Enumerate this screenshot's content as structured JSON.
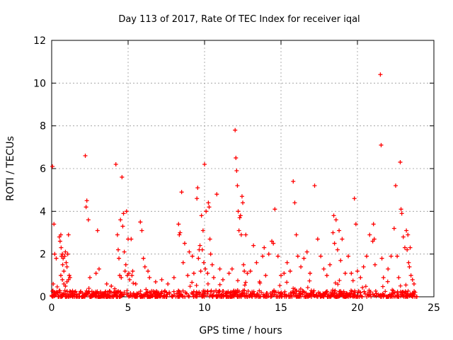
{
  "chart_data": {
    "type": "scatter",
    "title": "Day 113 of 2017, Rate Of TEC Index for receiver iqal",
    "xlabel": "GPS time / hours",
    "ylabel": "ROTI / TECUs",
    "xlim": [
      0,
      25
    ],
    "ylim": [
      0,
      12
    ],
    "x_ticks": [
      0,
      5,
      10,
      15,
      20,
      25
    ],
    "y_ticks": [
      0,
      2,
      4,
      6,
      8,
      10,
      12
    ],
    "grid": true,
    "marker": "plus",
    "color": "#ff0000",
    "baseline_band": {
      "x_start": 0,
      "x_end": 23.9,
      "y_max": 0.3
    },
    "points": [
      [
        0.05,
        6.1
      ],
      [
        0.1,
        0.6
      ],
      [
        0.15,
        3.4
      ],
      [
        0.2,
        2.0
      ],
      [
        0.3,
        1.8
      ],
      [
        0.5,
        2.8
      ],
      [
        0.55,
        2.6
      ],
      [
        0.6,
        2.9
      ],
      [
        0.62,
        2.3
      ],
      [
        0.65,
        1.9
      ],
      [
        0.7,
        2.0
      ],
      [
        0.72,
        1.5
      ],
      [
        0.75,
        1.8
      ],
      [
        0.8,
        1.2
      ],
      [
        0.85,
        1.9
      ],
      [
        0.9,
        2.1
      ],
      [
        0.95,
        1.6
      ],
      [
        1.0,
        1.4
      ],
      [
        1.05,
        2.0
      ],
      [
        1.1,
        2.9
      ],
      [
        1.15,
        1.0
      ],
      [
        1.2,
        0.9
      ],
      [
        0.6,
        1.0
      ],
      [
        0.7,
        0.8
      ],
      [
        0.8,
        0.6
      ],
      [
        0.9,
        0.5
      ],
      [
        1.0,
        0.7
      ],
      [
        1.1,
        0.8
      ],
      [
        2.2,
        6.6
      ],
      [
        2.3,
        4.5
      ],
      [
        2.25,
        4.2
      ],
      [
        2.4,
        3.6
      ],
      [
        2.5,
        0.9
      ],
      [
        2.9,
        1.1
      ],
      [
        3.0,
        3.1
      ],
      [
        3.1,
        1.3
      ],
      [
        3.6,
        0.6
      ],
      [
        3.9,
        0.5
      ],
      [
        4.2,
        6.2
      ],
      [
        4.3,
        2.9
      ],
      [
        4.35,
        2.2
      ],
      [
        4.4,
        1.8
      ],
      [
        4.45,
        1.0
      ],
      [
        4.5,
        3.6
      ],
      [
        4.55,
        0.9
      ],
      [
        4.6,
        5.6
      ],
      [
        4.65,
        3.3
      ],
      [
        4.7,
        3.9
      ],
      [
        4.75,
        2.1
      ],
      [
        4.8,
        1.2
      ],
      [
        4.85,
        1.5
      ],
      [
        4.9,
        4.0
      ],
      [
        4.95,
        1.0
      ],
      [
        5.0,
        2.7
      ],
      [
        5.05,
        1.1
      ],
      [
        5.1,
        0.8
      ],
      [
        5.2,
        2.7
      ],
      [
        5.25,
        1.0
      ],
      [
        5.3,
        1.2
      ],
      [
        5.5,
        0.6
      ],
      [
        5.8,
        3.5
      ],
      [
        5.9,
        3.1
      ],
      [
        6.0,
        1.8
      ],
      [
        6.1,
        1.4
      ],
      [
        6.3,
        1.2
      ],
      [
        6.4,
        0.9
      ],
      [
        6.8,
        0.7
      ],
      [
        7.2,
        0.8
      ],
      [
        7.6,
        0.6
      ],
      [
        8.0,
        0.9
      ],
      [
        8.3,
        3.4
      ],
      [
        8.35,
        2.9
      ],
      [
        8.4,
        3.0
      ],
      [
        8.5,
        4.9
      ],
      [
        8.6,
        1.6
      ],
      [
        8.7,
        2.5
      ],
      [
        8.9,
        1.0
      ],
      [
        9.0,
        2.1
      ],
      [
        9.2,
        1.9
      ],
      [
        9.3,
        1.1
      ],
      [
        9.5,
        4.6
      ],
      [
        9.55,
        5.1
      ],
      [
        9.6,
        1.8
      ],
      [
        9.65,
        2.2
      ],
      [
        9.7,
        2.4
      ],
      [
        9.75,
        1.2
      ],
      [
        9.8,
        3.8
      ],
      [
        9.85,
        2.2
      ],
      [
        9.9,
        3.1
      ],
      [
        9.95,
        1.6
      ],
      [
        10.0,
        6.2
      ],
      [
        10.05,
        1.3
      ],
      [
        10.1,
        4.0
      ],
      [
        10.2,
        1.1
      ],
      [
        10.25,
        4.4
      ],
      [
        10.3,
        4.2
      ],
      [
        10.35,
        2.7
      ],
      [
        10.4,
        2.0
      ],
      [
        10.5,
        1.5
      ],
      [
        10.6,
        0.9
      ],
      [
        10.8,
        4.8
      ],
      [
        11.0,
        1.3
      ],
      [
        11.2,
        0.8
      ],
      [
        11.6,
        1.1
      ],
      [
        11.8,
        1.3
      ],
      [
        12.0,
        7.8
      ],
      [
        12.05,
        6.5
      ],
      [
        12.1,
        5.9
      ],
      [
        12.15,
        5.2
      ],
      [
        12.2,
        4.0
      ],
      [
        12.25,
        3.1
      ],
      [
        12.3,
        3.7
      ],
      [
        12.35,
        3.8
      ],
      [
        12.4,
        2.9
      ],
      [
        12.45,
        4.7
      ],
      [
        12.5,
        4.4
      ],
      [
        12.55,
        1.5
      ],
      [
        12.6,
        1.2
      ],
      [
        12.7,
        2.9
      ],
      [
        12.8,
        1.1
      ],
      [
        13.0,
        1.2
      ],
      [
        13.2,
        2.4
      ],
      [
        13.4,
        1.6
      ],
      [
        13.6,
        0.7
      ],
      [
        13.8,
        1.9
      ],
      [
        13.9,
        2.3
      ],
      [
        14.0,
        1.0
      ],
      [
        14.2,
        2.0
      ],
      [
        14.4,
        2.6
      ],
      [
        14.5,
        2.5
      ],
      [
        14.6,
        4.1
      ],
      [
        14.8,
        1.9
      ],
      [
        15.0,
        1.0
      ],
      [
        15.2,
        1.1
      ],
      [
        15.4,
        1.6
      ],
      [
        15.6,
        1.2
      ],
      [
        15.8,
        5.4
      ],
      [
        15.9,
        4.4
      ],
      [
        16.0,
        2.9
      ],
      [
        16.1,
        1.9
      ],
      [
        16.3,
        1.4
      ],
      [
        16.5,
        1.8
      ],
      [
        16.7,
        2.1
      ],
      [
        16.9,
        1.1
      ],
      [
        17.2,
        5.2
      ],
      [
        17.4,
        2.7
      ],
      [
        17.6,
        1.9
      ],
      [
        17.8,
        1.3
      ],
      [
        18.0,
        1.0
      ],
      [
        18.2,
        1.5
      ],
      [
        18.4,
        3.0
      ],
      [
        18.45,
        3.8
      ],
      [
        18.5,
        2.5
      ],
      [
        18.6,
        3.6
      ],
      [
        18.7,
        2.2
      ],
      [
        18.8,
        3.1
      ],
      [
        18.9,
        1.7
      ],
      [
        19.0,
        2.7
      ],
      [
        19.2,
        1.1
      ],
      [
        19.4,
        1.9
      ],
      [
        19.6,
        1.1
      ],
      [
        19.8,
        4.6
      ],
      [
        19.9,
        3.4
      ],
      [
        20.0,
        1.2
      ],
      [
        20.2,
        0.9
      ],
      [
        20.4,
        1.4
      ],
      [
        20.6,
        1.9
      ],
      [
        20.8,
        2.9
      ],
      [
        21.0,
        2.6
      ],
      [
        21.05,
        3.4
      ],
      [
        21.1,
        2.7
      ],
      [
        21.15,
        1.5
      ],
      [
        21.5,
        10.4
      ],
      [
        21.55,
        7.1
      ],
      [
        21.6,
        1.8
      ],
      [
        21.7,
        0.9
      ],
      [
        22.0,
        1.3
      ],
      [
        22.2,
        1.9
      ],
      [
        22.4,
        3.2
      ],
      [
        22.5,
        5.2
      ],
      [
        22.6,
        1.9
      ],
      [
        22.7,
        0.9
      ],
      [
        22.8,
        6.3
      ],
      [
        22.85,
        4.1
      ],
      [
        22.9,
        3.9
      ],
      [
        23.0,
        2.8
      ],
      [
        23.1,
        2.3
      ],
      [
        23.2,
        3.1
      ],
      [
        23.25,
        2.2
      ],
      [
        23.3,
        2.9
      ],
      [
        23.35,
        1.6
      ],
      [
        23.4,
        1.4
      ],
      [
        23.45,
        2.3
      ],
      [
        23.5,
        1.0
      ],
      [
        23.6,
        0.8
      ],
      [
        23.7,
        0.6
      ]
    ]
  }
}
